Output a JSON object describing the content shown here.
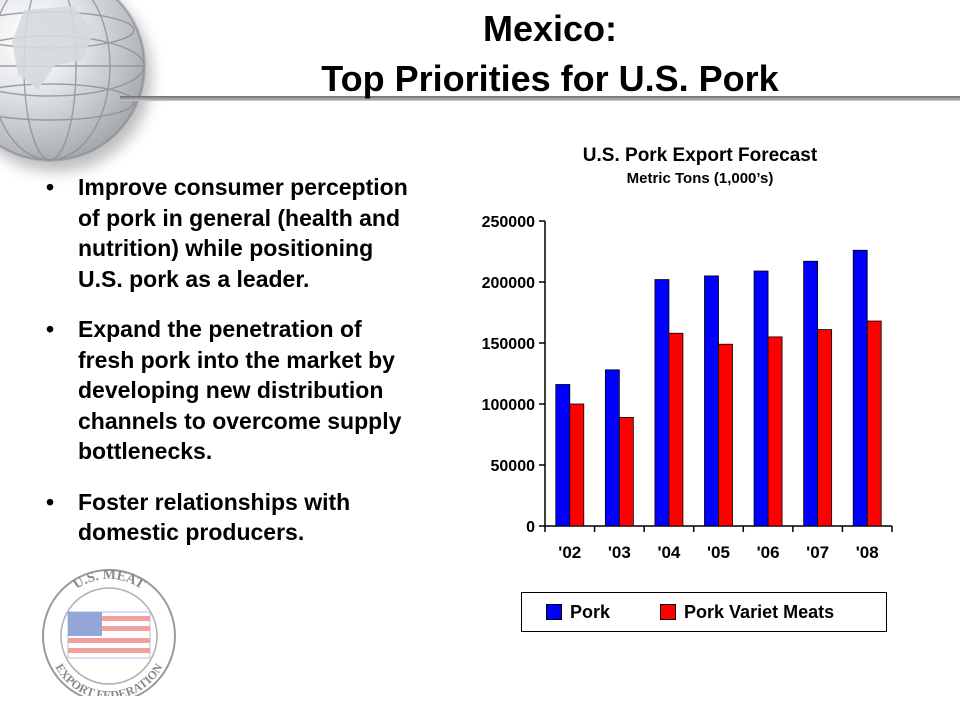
{
  "slide": {
    "title_line1": "Mexico:",
    "title_line2": "Top Priorities for U.S. Pork",
    "bullets": [
      "Improve consumer perception of pork in general (health and nutrition) while positioning U.S. pork as a leader.",
      "Expand the penetration of fresh pork into the market by developing new distribution channels to overcome supply bottlenecks.",
      "Foster relationships with domestic producers."
    ],
    "logo_text_top": "U.S. MEAT",
    "logo_text_bottom": "EXPORT FEDERATION"
  },
  "chart_data": {
    "type": "bar",
    "title": "U.S. Pork Export Forecast",
    "subtitle": "Metric Tons (1,000’s)",
    "categories": [
      "'02",
      "'03",
      "'04",
      "'05",
      "'06",
      "'07",
      "'08"
    ],
    "series": [
      {
        "name": "Pork",
        "color": "#0000ff",
        "values": [
          116000,
          128000,
          202000,
          205000,
          209000,
          217000,
          226000
        ]
      },
      {
        "name": "Pork Variet Meats",
        "color": "#ff0000",
        "values": [
          100000,
          89000,
          158000,
          149000,
          155000,
          161000,
          168000
        ]
      }
    ],
    "y_ticks": [
      "0",
      "50000",
      "100000",
      "150000",
      "200000",
      "250000"
    ],
    "ylim": [
      0,
      250000
    ],
    "grid": false,
    "legend_position": "bottom"
  }
}
